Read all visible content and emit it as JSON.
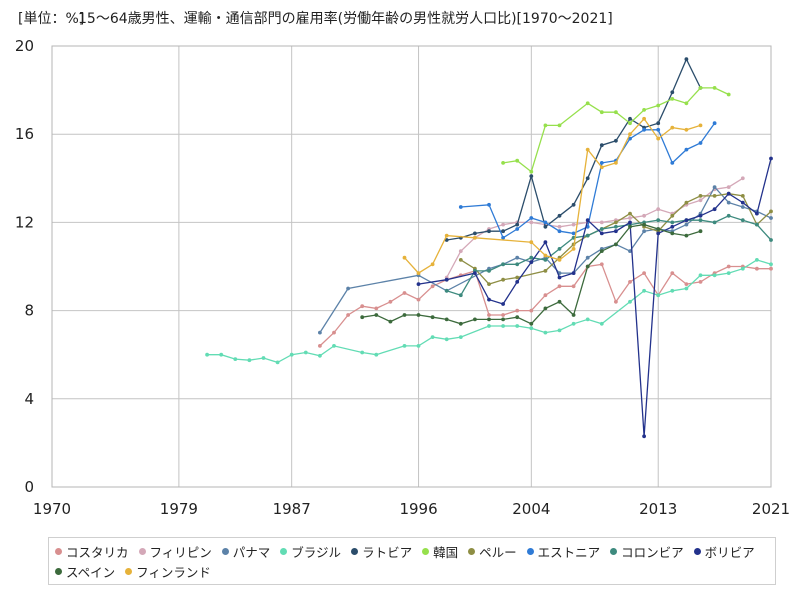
{
  "chart_data": {
    "type": "line",
    "unit_label": "[単位：%]",
    "title": "15～64歳男性、運輸・通信部門の雇用率(労働年齢の男性就労人口比)[1970～2021]",
    "xlim": [
      1970,
      2021
    ],
    "ylim": [
      0,
      20
    ],
    "x_ticks": [
      1970,
      1979,
      1987,
      1996,
      2004,
      2013,
      2021
    ],
    "y_ticks": [
      0,
      4,
      8,
      12,
      16,
      20
    ],
    "grid": true,
    "legend_position": "bottom",
    "series": [
      {
        "name": "コスタリカ",
        "color": "#d88f8f",
        "points": [
          [
            1989,
            6.4
          ],
          [
            1990,
            7.0
          ],
          [
            1991,
            7.8
          ],
          [
            1992,
            8.2
          ],
          [
            1993,
            8.1
          ],
          [
            1994,
            8.4
          ],
          [
            1995,
            8.8
          ],
          [
            1996,
            8.5
          ],
          [
            1997,
            9.1
          ],
          [
            1998,
            9.4
          ],
          [
            1999,
            9.6
          ],
          [
            2000,
            9.8
          ],
          [
            2001,
            7.8
          ],
          [
            2002,
            7.8
          ],
          [
            2003,
            8.0
          ],
          [
            2004,
            8.0
          ],
          [
            2005,
            8.7
          ],
          [
            2006,
            9.1
          ],
          [
            2007,
            9.1
          ],
          [
            2008,
            10.0
          ],
          [
            2009,
            10.1
          ],
          [
            2010,
            8.4
          ],
          [
            2011,
            9.3
          ],
          [
            2012,
            9.7
          ],
          [
            2013,
            8.7
          ],
          [
            2014,
            9.7
          ],
          [
            2015,
            9.2
          ],
          [
            2016,
            9.3
          ],
          [
            2017,
            9.7
          ],
          [
            2018,
            10.0
          ],
          [
            2019,
            10.0
          ],
          [
            2020,
            9.9
          ],
          [
            2021,
            9.9
          ]
        ]
      },
      {
        "name": "フィリピン",
        "color": "#d4a8b8",
        "points": [
          [
            1998,
            9.5
          ],
          [
            1999,
            10.7
          ],
          [
            2000,
            11.3
          ],
          [
            2001,
            11.7
          ],
          [
            2002,
            11.9
          ],
          [
            2003,
            12.0
          ],
          [
            2004,
            12.0
          ],
          [
            2005,
            11.9
          ],
          [
            2006,
            11.8
          ],
          [
            2007,
            11.9
          ],
          [
            2008,
            12.0
          ],
          [
            2009,
            12.0
          ],
          [
            2010,
            12.1
          ],
          [
            2011,
            12.2
          ],
          [
            2012,
            12.3
          ],
          [
            2013,
            12.6
          ],
          [
            2014,
            12.4
          ],
          [
            2015,
            12.8
          ],
          [
            2016,
            13.0
          ],
          [
            2017,
            13.5
          ],
          [
            2018,
            13.6
          ],
          [
            2019,
            14.0
          ]
        ]
      },
      {
        "name": "パナマ",
        "color": "#5c82a8",
        "points": [
          [
            1989,
            7.0
          ],
          [
            1991,
            9.0
          ],
          [
            1996,
            9.6
          ],
          [
            1998,
            8.9
          ],
          [
            2001,
            9.9
          ],
          [
            2002,
            10.1
          ],
          [
            2003,
            10.4
          ],
          [
            2004,
            10.2
          ],
          [
            2005,
            10.4
          ],
          [
            2006,
            9.7
          ],
          [
            2007,
            9.7
          ],
          [
            2008,
            10.4
          ],
          [
            2009,
            10.8
          ],
          [
            2010,
            11.0
          ],
          [
            2011,
            10.7
          ],
          [
            2012,
            11.6
          ],
          [
            2013,
            11.7
          ],
          [
            2014,
            11.6
          ],
          [
            2015,
            11.9
          ],
          [
            2016,
            12.4
          ],
          [
            2017,
            13.6
          ],
          [
            2018,
            12.9
          ],
          [
            2019,
            12.7
          ],
          [
            2020,
            12.5
          ],
          [
            2021,
            12.2
          ]
        ]
      },
      {
        "name": "ブラジル",
        "color": "#62dcb4",
        "points": [
          [
            1981,
            6.0
          ],
          [
            1982,
            6.0
          ],
          [
            1983,
            5.8
          ],
          [
            1984,
            5.75
          ],
          [
            1985,
            5.85
          ],
          [
            1986,
            5.65
          ],
          [
            1987,
            6.0
          ],
          [
            1988,
            6.1
          ],
          [
            1989,
            5.95
          ],
          [
            1990,
            6.4
          ],
          [
            1992,
            6.1
          ],
          [
            1993,
            6.0
          ],
          [
            1995,
            6.4
          ],
          [
            1996,
            6.4
          ],
          [
            1997,
            6.8
          ],
          [
            1998,
            6.7
          ],
          [
            1999,
            6.8
          ],
          [
            2001,
            7.3
          ],
          [
            2002,
            7.3
          ],
          [
            2003,
            7.3
          ],
          [
            2004,
            7.2
          ],
          [
            2005,
            7.0
          ],
          [
            2006,
            7.1
          ],
          [
            2007,
            7.4
          ],
          [
            2008,
            7.6
          ],
          [
            2009,
            7.4
          ],
          [
            2011,
            8.4
          ],
          [
            2012,
            8.9
          ],
          [
            2013,
            8.7
          ],
          [
            2014,
            8.9
          ],
          [
            2015,
            9.0
          ],
          [
            2016,
            9.6
          ],
          [
            2017,
            9.6
          ],
          [
            2018,
            9.7
          ],
          [
            2019,
            9.9
          ],
          [
            2020,
            10.3
          ],
          [
            2021,
            10.1
          ]
        ]
      },
      {
        "name": "ラトビア",
        "color": "#2b4d6b",
        "points": [
          [
            1998,
            11.2
          ],
          [
            1999,
            11.3
          ],
          [
            2000,
            11.5
          ],
          [
            2001,
            11.6
          ],
          [
            2002,
            11.6
          ],
          [
            2003,
            11.9
          ],
          [
            2004,
            14.1
          ],
          [
            2005,
            11.8
          ],
          [
            2006,
            12.3
          ],
          [
            2007,
            12.8
          ],
          [
            2008,
            14.0
          ],
          [
            2009,
            15.5
          ],
          [
            2010,
            15.7
          ],
          [
            2011,
            16.7
          ],
          [
            2012,
            16.3
          ],
          [
            2013,
            16.5
          ],
          [
            2014,
            17.9
          ],
          [
            2015,
            19.4
          ],
          [
            2016,
            18.1
          ]
        ]
      },
      {
        "name": "韓国",
        "color": "#96e04c",
        "points": [
          [
            2002,
            14.7
          ],
          [
            2003,
            14.8
          ],
          [
            2004,
            14.3
          ],
          [
            2005,
            16.4
          ],
          [
            2006,
            16.4
          ],
          [
            2008,
            17.4
          ],
          [
            2009,
            17.0
          ],
          [
            2010,
            17.0
          ],
          [
            2011,
            16.5
          ],
          [
            2012,
            17.1
          ],
          [
            2013,
            17.3
          ],
          [
            2014,
            17.6
          ],
          [
            2015,
            17.4
          ],
          [
            2016,
            18.1
          ],
          [
            2017,
            18.1
          ],
          [
            2018,
            17.8
          ]
        ]
      },
      {
        "name": "ペルー",
        "color": "#8e8e44",
        "points": [
          [
            1999,
            10.3
          ],
          [
            2000,
            9.9
          ],
          [
            2001,
            9.2
          ],
          [
            2002,
            9.4
          ],
          [
            2003,
            9.5
          ],
          [
            2005,
            9.8
          ],
          [
            2006,
            10.4
          ],
          [
            2007,
            11.0
          ],
          [
            2008,
            11.4
          ],
          [
            2009,
            11.7
          ],
          [
            2010,
            12.0
          ],
          [
            2011,
            12.4
          ],
          [
            2012,
            11.8
          ],
          [
            2013,
            11.6
          ],
          [
            2014,
            12.3
          ],
          [
            2015,
            12.9
          ],
          [
            2016,
            13.2
          ],
          [
            2017,
            13.2
          ],
          [
            2018,
            13.3
          ],
          [
            2019,
            13.2
          ],
          [
            2020,
            11.9
          ],
          [
            2021,
            12.5
          ]
        ]
      },
      {
        "name": "エストニア",
        "color": "#2f7bd6",
        "points": [
          [
            1999,
            12.7
          ],
          [
            2001,
            12.8
          ],
          [
            2002,
            11.3
          ],
          [
            2003,
            11.7
          ],
          [
            2004,
            12.2
          ],
          [
            2005,
            12.0
          ],
          [
            2006,
            11.6
          ],
          [
            2007,
            11.5
          ],
          [
            2008,
            11.8
          ],
          [
            2009,
            14.7
          ],
          [
            2010,
            14.8
          ],
          [
            2011,
            15.8
          ],
          [
            2012,
            16.2
          ],
          [
            2013,
            16.2
          ],
          [
            2014,
            14.7
          ],
          [
            2015,
            15.3
          ],
          [
            2016,
            15.6
          ],
          [
            2017,
            16.5
          ]
        ]
      },
      {
        "name": "コロンビア",
        "color": "#3d8a7e",
        "points": [
          [
            1998,
            8.9
          ],
          [
            1999,
            8.7
          ],
          [
            2000,
            9.8
          ],
          [
            2001,
            9.8
          ],
          [
            2002,
            10.1
          ],
          [
            2003,
            10.1
          ],
          [
            2004,
            10.4
          ],
          [
            2005,
            10.3
          ],
          [
            2006,
            10.8
          ],
          [
            2007,
            11.3
          ],
          [
            2008,
            11.4
          ],
          [
            2009,
            11.7
          ],
          [
            2010,
            11.8
          ],
          [
            2011,
            11.9
          ],
          [
            2012,
            12.0
          ],
          [
            2013,
            12.1
          ],
          [
            2014,
            12.0
          ],
          [
            2015,
            12.1
          ],
          [
            2016,
            12.1
          ],
          [
            2017,
            12.0
          ],
          [
            2018,
            12.3
          ],
          [
            2019,
            12.1
          ],
          [
            2020,
            11.9
          ],
          [
            2021,
            11.2
          ]
        ]
      },
      {
        "name": "ボリビア",
        "color": "#23328c",
        "points": [
          [
            1996,
            9.2
          ],
          [
            1998,
            9.4
          ],
          [
            2000,
            9.7
          ],
          [
            2001,
            8.5
          ],
          [
            2002,
            8.3
          ],
          [
            2003,
            9.3
          ],
          [
            2004,
            10.2
          ],
          [
            2005,
            11.1
          ],
          [
            2006,
            9.5
          ],
          [
            2007,
            9.7
          ],
          [
            2008,
            12.1
          ],
          [
            2009,
            11.5
          ],
          [
            2010,
            11.6
          ],
          [
            2011,
            12.0
          ],
          [
            2012,
            2.3
          ],
          [
            2013,
            11.5
          ],
          [
            2014,
            11.8
          ],
          [
            2015,
            12.1
          ],
          [
            2016,
            12.3
          ],
          [
            2017,
            12.6
          ],
          [
            2018,
            13.3
          ],
          [
            2019,
            12.9
          ],
          [
            2020,
            12.4
          ],
          [
            2021,
            14.9
          ]
        ]
      },
      {
        "name": "スペイン",
        "color": "#3c6a3c",
        "points": [
          [
            1992,
            7.7
          ],
          [
            1993,
            7.8
          ],
          [
            1994,
            7.5
          ],
          [
            1995,
            7.8
          ],
          [
            1996,
            7.8
          ],
          [
            1997,
            7.7
          ],
          [
            1998,
            7.6
          ],
          [
            1999,
            7.4
          ],
          [
            2000,
            7.6
          ],
          [
            2001,
            7.6
          ],
          [
            2002,
            7.6
          ],
          [
            2003,
            7.7
          ],
          [
            2004,
            7.4
          ],
          [
            2005,
            8.1
          ],
          [
            2006,
            8.4
          ],
          [
            2007,
            7.8
          ],
          [
            2008,
            10.0
          ],
          [
            2009,
            10.7
          ],
          [
            2010,
            11.0
          ],
          [
            2011,
            11.8
          ],
          [
            2012,
            11.9
          ],
          [
            2013,
            11.7
          ],
          [
            2014,
            11.5
          ],
          [
            2015,
            11.4
          ],
          [
            2016,
            11.6
          ]
        ]
      },
      {
        "name": "フィンランド",
        "color": "#e6b23a",
        "points": [
          [
            1995,
            10.4
          ],
          [
            1996,
            9.7
          ],
          [
            1997,
            10.1
          ],
          [
            1998,
            11.4
          ],
          [
            2000,
            11.3
          ],
          [
            2004,
            11.1
          ],
          [
            2005,
            10.5
          ],
          [
            2006,
            10.3
          ],
          [
            2007,
            10.8
          ],
          [
            2008,
            15.3
          ],
          [
            2009,
            14.5
          ],
          [
            2010,
            14.7
          ],
          [
            2011,
            16.0
          ],
          [
            2012,
            16.7
          ],
          [
            2013,
            15.8
          ],
          [
            2014,
            16.3
          ],
          [
            2015,
            16.2
          ],
          [
            2016,
            16.4
          ]
        ]
      }
    ]
  }
}
